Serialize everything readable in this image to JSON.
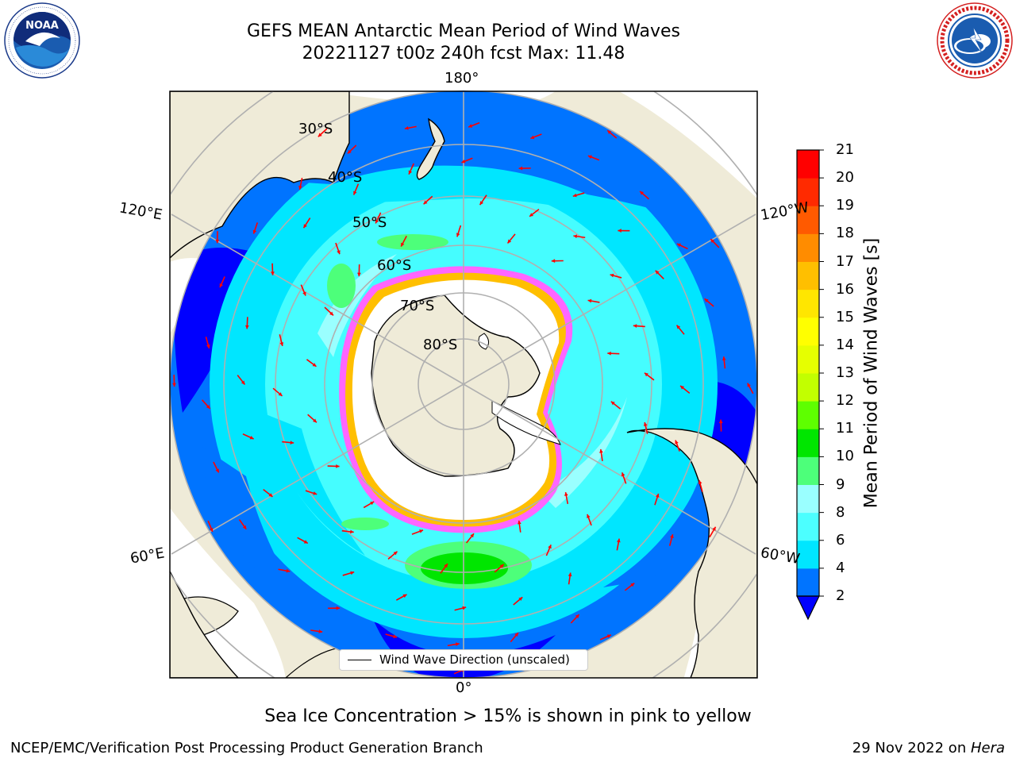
{
  "title": {
    "line1": "GEFS MEAN Antarctic Mean Period of Wind Waves",
    "line2": "20221127 t00z 240h fcst   Max: 11.48"
  },
  "logos": {
    "left": {
      "icon": "noaa-logo-icon",
      "text": "NOAA",
      "ring_text": "NATIONAL OCEANIC AND ATMOSPHERIC ADMINISTRATION · U.S. DEPARTMENT OF COMMERCE"
    },
    "right": {
      "icon": "nws-logo-icon",
      "ring_text": "NATIONAL WEATHER SERVICE"
    }
  },
  "map": {
    "projection": "South Polar Stereographic",
    "longitude_labels": {
      "top": "180°",
      "bottom": "0°",
      "upper_left": "120°E",
      "upper_right": "120°W",
      "lower_left": "60°E",
      "lower_right": "60°W"
    },
    "latitude_labels": [
      "30°S",
      "40°S",
      "50°S",
      "60°S",
      "70°S",
      "80°S"
    ],
    "legend": "Wind Wave Direction (unscaled)",
    "arrow_color": "#ff0000",
    "land_color": "#efebd8",
    "ice_color": "#ffffff"
  },
  "colorbar": {
    "label": "Mean Period of Wind Waves [s]",
    "ticks": [
      "2",
      "4",
      "6",
      "8",
      "9",
      "10",
      "11",
      "12",
      "13",
      "14",
      "15",
      "16",
      "17",
      "18",
      "19",
      "20",
      "21"
    ],
    "colors": [
      "#0000ff",
      "#0074ff",
      "#00e6ff",
      "#4cffff",
      "#9affff",
      "#4dff7a",
      "#00e600",
      "#5eff00",
      "#c2ff00",
      "#e6ff00",
      "#ffff00",
      "#ffe600",
      "#ffbf00",
      "#ff8c00",
      "#ff5a00",
      "#ff2a00",
      "#ff0000"
    ],
    "extend_min_color": "#0000ff"
  },
  "note": "Sea Ice Concentration > 15% is shown in pink to yellow",
  "footer": {
    "left": "NCEP/EMC/Verification Post Processing Product Generation Branch",
    "right_date": "29 Nov 2022 on ",
    "right_machine": "Hera"
  }
}
